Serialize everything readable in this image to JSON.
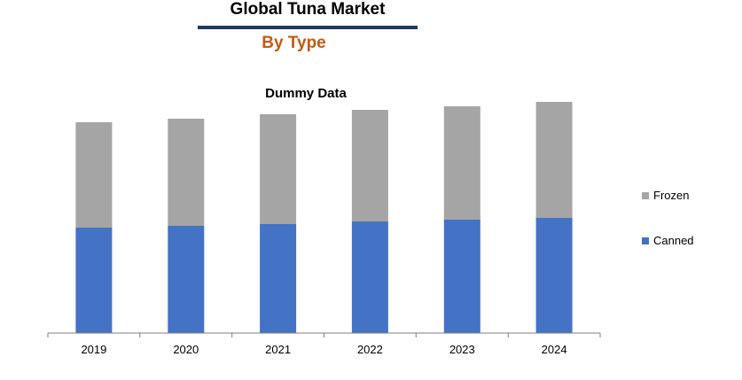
{
  "header": {
    "title": "Global Tuna Market",
    "subtitle": "By Type",
    "subtitle_color": "#c55a11",
    "rule_color": "#1f3864"
  },
  "chart_data": {
    "type": "bar",
    "stacked": true,
    "title": "Dummy Data",
    "categories": [
      "2019",
      "2020",
      "2021",
      "2022",
      "2023",
      "2024"
    ],
    "series": [
      {
        "name": "Canned",
        "color": "#4472c4",
        "values": [
          119,
          121,
          123,
          126,
          128,
          130
        ]
      },
      {
        "name": "Frozen",
        "color": "#a5a5a5",
        "values": [
          119,
          121,
          124,
          126,
          128,
          131
        ]
      }
    ],
    "ylim": [
      0,
      262
    ],
    "grid": false,
    "legend_position": "right"
  }
}
